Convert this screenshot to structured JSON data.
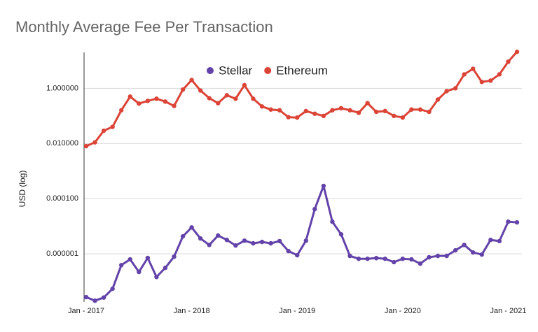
{
  "chart_data": {
    "type": "line",
    "title": "Monthly Average Fee Per Transaction",
    "y_label": "USD (log)",
    "log_scale": true,
    "grid": true,
    "legend": "top",
    "categories": [
      "Jan - 2017",
      null,
      null,
      null,
      null,
      null,
      null,
      null,
      null,
      null,
      null,
      null,
      "Jan - 2018",
      null,
      null,
      null,
      null,
      null,
      null,
      null,
      null,
      null,
      null,
      null,
      "Jan - 2019",
      null,
      null,
      null,
      null,
      null,
      null,
      null,
      null,
      null,
      null,
      null,
      "Jan - 2020",
      null,
      null,
      null,
      null,
      null,
      null,
      null,
      null,
      null,
      null,
      null,
      "Jan - 2021",
      null
    ],
    "series": [
      {
        "name": "Stellar",
        "color": "#6343a9",
        "values": [
          2.7e-08,
          2e-08,
          2.6e-08,
          5.4e-08,
          3.9e-07,
          6.3e-07,
          2.2e-07,
          7.1e-07,
          1.45e-07,
          3.1e-07,
          7.9e-07,
          4.3e-06,
          9.1e-06,
          3.6e-06,
          2.1e-06,
          4.6e-06,
          3.2e-06,
          2e-06,
          3e-06,
          2.4e-06,
          2.7e-06,
          2.4e-06,
          2.9e-06,
          1.26e-06,
          8.9e-07,
          3e-06,
          4.2e-05,
          0.00029,
          1.46e-05,
          5.1e-06,
          8.4e-07,
          6.6e-07,
          6.6e-07,
          7e-07,
          6.6e-07,
          5e-07,
          6.6e-07,
          6.3e-07,
          4.4e-07,
          7.5e-07,
          8.4e-07,
          8.4e-07,
          1.34e-06,
          2.1e-06,
          1.12e-06,
          9.4e-07,
          3.2e-06,
          2.9e-06,
          1.46e-05,
          1.38e-05
        ]
      },
      {
        "name": "Ethereum",
        "color": "#db4437",
        "values": [
          0.008,
          0.011,
          0.029,
          0.04,
          0.16,
          0.5,
          0.28,
          0.35,
          0.42,
          0.33,
          0.23,
          0.9,
          2.0,
          0.83,
          0.44,
          0.29,
          0.56,
          0.42,
          1.3,
          0.42,
          0.22,
          0.17,
          0.16,
          0.09,
          0.087,
          0.15,
          0.12,
          0.1,
          0.16,
          0.19,
          0.16,
          0.13,
          0.29,
          0.14,
          0.15,
          0.1,
          0.087,
          0.17,
          0.17,
          0.14,
          0.39,
          0.79,
          1.0,
          3.2,
          5.1,
          1.7,
          1.9,
          3.2,
          9.2,
          21
        ]
      }
    ],
    "ylim": [
      1.8e-08,
      20
    ],
    "yticks": [
      {
        "value": 1e-06,
        "label": "0.000001"
      },
      {
        "value": 0.0001,
        "label": "0.000100"
      },
      {
        "value": 0.01,
        "label": "0.010000"
      },
      {
        "value": 1,
        "label": "1.000000"
      }
    ]
  }
}
